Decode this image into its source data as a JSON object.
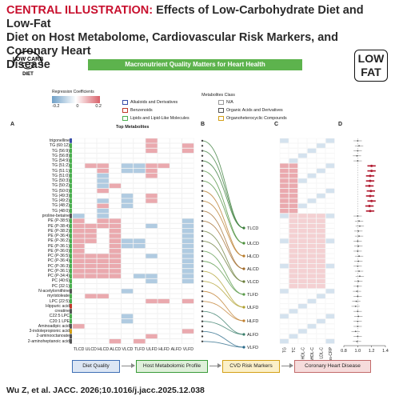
{
  "header": {
    "prefix": "CENTRAL ILLUSTRATION:",
    "title_1": "Effects of Low-Carbohydrate Diet and Low-Fat",
    "title_2": "Diet on Host Metabolome, Cardiovascular Risk Markers, and Coronary Heart",
    "title_3": "Disease"
  },
  "badges": {
    "low_carb_top": "LOW CARB",
    "low_carb_bottom": "DIET",
    "low_fat_1": "LOW",
    "low_fat_2": "FAT"
  },
  "banner": "Macronutrient Quality Matters for Heart Health",
  "regression_legend": {
    "title": "Regression Coefficients",
    "ticks": [
      "-0.2",
      "0",
      "0.2"
    ]
  },
  "metabolite_classes": {
    "title": "Metabolites Class",
    "items": [
      {
        "label": "Alkaloids and Derivatives",
        "color": "#3a4ea8"
      },
      {
        "label": "N/A",
        "color": "#999999"
      },
      {
        "label": "Benzenoids",
        "color": "#c0392b"
      },
      {
        "label": "Organic Acids and Derivatives",
        "color": "#555555"
      },
      {
        "label": "Lipids and Lipid-Like Molecules",
        "color": "#4caf50"
      },
      {
        "label": "Organoheterocyclic Compounds",
        "color": "#d4a017"
      }
    ]
  },
  "panels": {
    "A": "A",
    "B": "B",
    "C": "C",
    "D": "D",
    "top_metabolites": "Top Metabolites"
  },
  "metabolites": [
    "trigonelline",
    "TG (60:12)",
    "TG (56:9)",
    "TG (56:8)",
    "TG (54:9)",
    "TG (51:2)",
    "TG (51:1)",
    "TG (51:0)",
    "TG (50:3)",
    "TG (50:2)",
    "TG (50:0)",
    "TG (49:3)",
    "TG (49:2)",
    "TG (48:2)",
    "TG (48:0)",
    "proline-betaine",
    "PE (P-38:5)",
    "PE (P-38:4)",
    "PE (P-38:2)",
    "PE (P-36:4)",
    "PE (P-36:2)",
    "PE (P-36:1)",
    "PE (P-36:0)",
    "PC (P-36:5)",
    "PC (P-36:4)",
    "PC (P-36:3)",
    "PC (P-36:1)",
    "PC (P-34:4)",
    "PC (40:6)",
    "PC (32:1)",
    "N-acetylornithine",
    "myristoleate",
    "LPC (22:5)",
    "Hippuric acid",
    "creatine",
    "C22:5 LPC",
    "C20:1 LPE",
    "Aminoadipic acid",
    "3-indolepropionic acid",
    "2-aminooctanoate",
    "2-aminoheptanoic acid"
  ],
  "diets": [
    "TLCD",
    "ULCD",
    "HLCD",
    "ALCD",
    "VLCD",
    "TLFD",
    "ULFD",
    "HLFD",
    "ALFD",
    "VLFD"
  ],
  "markers": [
    "TG",
    "TC",
    "HDL-C",
    "nonHDL-C",
    "LDL-C",
    "hs-CRP"
  ],
  "forest_axis": [
    "0.8",
    "1.0",
    "1.2",
    "1.4"
  ],
  "bottom_flow": [
    "Diet Quality",
    "Host Metabolomic Profile",
    "CVD Risk Markers",
    "Coronary Heart Disease"
  ],
  "colors": {
    "red": "#d9626b",
    "blue": "#6fa0c8",
    "pill_blue": "#3f6fb5",
    "pill_green": "#3a9b3a",
    "pill_yellow": "#d4a017",
    "pill_pink": "#c26a6a"
  },
  "heat_values": {
    "TLCD": [
      0,
      0,
      0,
      0,
      0,
      0,
      0,
      0,
      0,
      0,
      0,
      0,
      0,
      0,
      0,
      -0.2,
      0.23,
      0.18,
      0.2,
      0.2,
      0.2,
      0.2,
      0.2,
      0.21,
      0.22,
      0.21,
      0.21,
      0.26,
      0,
      0,
      0,
      0,
      0,
      0,
      0,
      0,
      0,
      0.2,
      0,
      0,
      0
    ],
    "ULCD": [
      0,
      0,
      0,
      0,
      0,
      0.24,
      0,
      0,
      0,
      0,
      0,
      0,
      0,
      0,
      0,
      0,
      0,
      0.3,
      0.3,
      0.3,
      0.3,
      0,
      0,
      0.3,
      0.3,
      0.3,
      0.3,
      0.3,
      0,
      0,
      0,
      0.25,
      0,
      0,
      0,
      0,
      0,
      0,
      0,
      0,
      0
    ],
    "HLCD": [
      0,
      0,
      0,
      0,
      0,
      0.2,
      0.2,
      -0.2,
      -0.2,
      -0.2,
      0.2,
      0,
      -0.2,
      0.2,
      -0.2,
      -0.2,
      0.2,
      0.2,
      0,
      0,
      0,
      0,
      0,
      0.2,
      0.2,
      0.2,
      0.2,
      0.2,
      0,
      0,
      0,
      0.3,
      0,
      0,
      0,
      0,
      0,
      0,
      0,
      0,
      0
    ],
    "ALCD": [
      0,
      0,
      0,
      0,
      0,
      0,
      0,
      0,
      0,
      0.2,
      0,
      0,
      0,
      0,
      0,
      0,
      0.2,
      0.2,
      0.2,
      0.2,
      0.2,
      0.2,
      0.2,
      0.2,
      0.2,
      0.2,
      0.2,
      0.2,
      0,
      0,
      0,
      0,
      0,
      0,
      0,
      0,
      0,
      0,
      0,
      0,
      0.2
    ],
    "VLCD": [
      0,
      0,
      0,
      0,
      0,
      -0.2,
      -0.2,
      0,
      0,
      0,
      0,
      -0.2,
      -0.2,
      -0.2,
      0,
      0,
      0,
      0,
      0,
      0,
      -0.2,
      -0.2,
      0,
      0,
      0,
      0,
      0,
      0,
      0,
      0,
      -0.2,
      0,
      0,
      0,
      0,
      -0.2,
      -0.2,
      0,
      0,
      0,
      0
    ],
    "TLFD": [
      0,
      0,
      0,
      0,
      0,
      -0.2,
      -0.2,
      0,
      0,
      0,
      0,
      0,
      0,
      0,
      0,
      0,
      0,
      0,
      0,
      0,
      -0.2,
      -0.2,
      0,
      0,
      0,
      0,
      0,
      -0.2,
      0,
      0,
      0,
      0,
      0,
      0,
      0,
      0,
      0,
      0,
      0,
      0,
      0.2
    ],
    "ULFD": [
      0.2,
      0.2,
      0.2,
      0,
      0,
      0.2,
      0.2,
      0.2,
      0,
      0,
      0,
      0.2,
      0.2,
      0,
      0,
      0,
      0,
      -0.2,
      0,
      0,
      0,
      0,
      0,
      -0.2,
      0,
      0,
      0,
      -0.2,
      -0.2,
      0,
      0,
      0,
      0.2,
      0,
      0,
      0,
      0,
      0,
      0,
      0.2,
      0
    ],
    "HLFD": [
      0,
      0,
      0,
      0,
      0,
      0.2,
      0,
      0,
      0,
      0,
      0,
      0,
      0,
      0,
      0,
      0,
      0,
      0,
      0,
      0,
      0,
      0,
      0,
      0,
      0,
      0,
      0,
      0,
      0,
      0,
      0,
      0,
      0.2,
      0,
      0,
      0,
      0,
      0,
      0,
      0,
      0
    ],
    "ALFD": [
      0,
      0,
      0,
      0,
      0,
      0,
      0,
      0,
      0,
      0,
      0,
      0,
      0,
      0,
      0,
      0,
      0,
      0,
      0,
      0,
      0,
      0,
      0,
      0,
      0,
      0,
      0,
      0,
      0,
      0,
      0,
      0,
      0,
      0,
      0,
      0,
      0,
      0,
      0,
      0,
      0
    ],
    "VLFD": [
      0,
      0.2,
      0.2,
      0,
      0,
      0,
      0,
      0,
      0,
      0,
      0,
      0,
      0,
      0,
      0,
      0,
      -0.2,
      -0.2,
      -0.2,
      -0.2,
      -0.2,
      -0.2,
      -0.2,
      -0.2,
      -0.2,
      -0.2,
      -0.2,
      -0.2,
      -0.2,
      0,
      0,
      0,
      0.2,
      0,
      0,
      0,
      0,
      0,
      0.2,
      0,
      0
    ]
  },
  "citation": "Wu Z, et al. JACC. 2026;10.1016/j.jacc.2025.12.038"
}
